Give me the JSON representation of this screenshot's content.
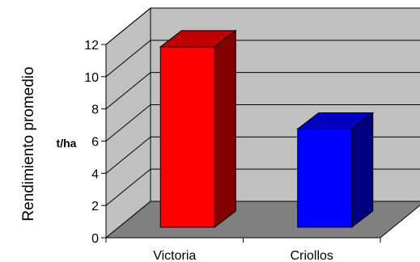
{
  "chart_data": {
    "type": "bar",
    "style": "3d-column",
    "categories": [
      "Victoria",
      "Criollos"
    ],
    "values": [
      11.2,
      6.1
    ],
    "ylabel": "Rendimiento promedio",
    "unit_label": "t/ha",
    "ylim": [
      0,
      12
    ],
    "yticks": [
      0,
      2,
      4,
      6,
      8,
      10,
      12
    ],
    "grid": true,
    "legend": "none",
    "colors": {
      "bars": [
        "#ff0000",
        "#0000ff"
      ],
      "bar_tops": [
        "#c00000",
        "#0000c0"
      ],
      "bar_sides": [
        "#800000",
        "#000080"
      ],
      "back_wall": "#c0c0c0",
      "side_wall": "#c0c0c0",
      "floor": "#808080"
    }
  }
}
